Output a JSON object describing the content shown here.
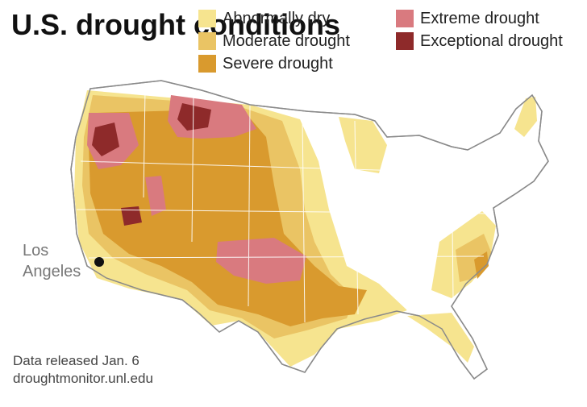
{
  "title": "U.S. drought conditions",
  "legend": [
    {
      "label": "Abnormally dry",
      "color": "#f6e48f"
    },
    {
      "label": "Extreme drought",
      "color": "#d97a7f"
    },
    {
      "label": "Moderate drought",
      "color": "#eac464"
    },
    {
      "label": "Exceptional drought",
      "color": "#8e2a2a"
    },
    {
      "label": "Severe drought",
      "color": "#d99a2e"
    }
  ],
  "city": {
    "name": "Los Angeles"
  },
  "source": {
    "released": "Data released Jan. 6",
    "url": "droughtmonitor.unl.edu"
  }
}
